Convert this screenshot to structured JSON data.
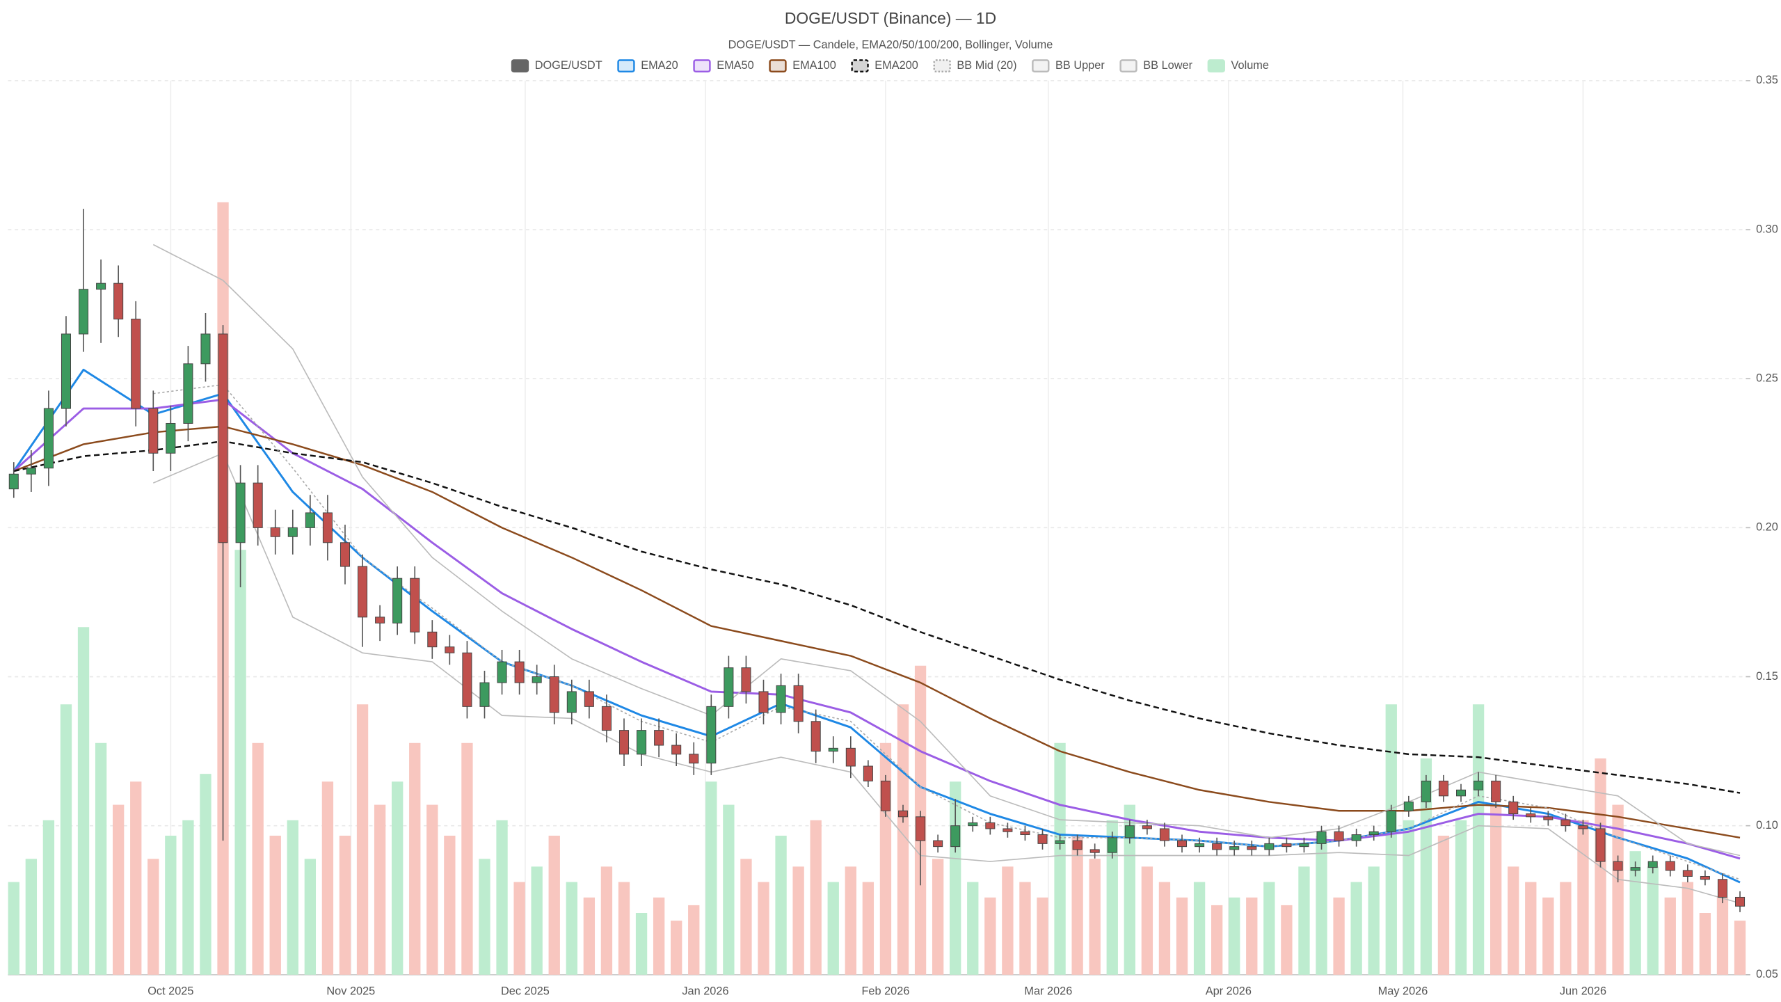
{
  "chart_data": {
    "type": "candlestick",
    "title": "DOGE/USDT (Binance) — 1D",
    "subtitle": "DOGE/USDT — Candele, EMA20/50/100/200, Bollinger, Volume",
    "x": [
      "2025-09-04",
      "2025-09-07",
      "2025-09-10",
      "2025-09-13",
      "2025-09-16",
      "2025-09-19",
      "2025-09-22",
      "2025-09-25",
      "2025-09-28",
      "2025-10-01",
      "2025-10-04",
      "2025-10-07",
      "2025-10-10",
      "2025-10-13",
      "2025-10-16",
      "2025-10-19",
      "2025-10-22",
      "2025-10-25",
      "2025-10-28",
      "2025-10-31",
      "2025-11-03",
      "2025-11-06",
      "2025-11-09",
      "2025-11-12",
      "2025-11-15",
      "2025-11-18",
      "2025-11-21",
      "2025-11-24",
      "2025-11-27",
      "2025-11-30",
      "2025-12-03",
      "2025-12-06",
      "2025-12-09",
      "2025-12-12",
      "2025-12-15",
      "2025-12-18",
      "2025-12-21",
      "2025-12-24",
      "2025-12-27",
      "2025-12-30",
      "2026-01-02",
      "2026-01-05",
      "2026-01-08",
      "2026-01-11",
      "2026-01-14",
      "2026-01-17",
      "2026-01-20",
      "2026-01-23",
      "2026-01-26",
      "2026-01-29",
      "2026-02-01",
      "2026-02-04",
      "2026-02-07",
      "2026-02-10",
      "2026-02-13",
      "2026-02-16",
      "2026-02-19",
      "2026-02-22",
      "2026-02-25",
      "2026-02-28",
      "2026-03-03",
      "2026-03-06",
      "2026-03-09",
      "2026-03-12",
      "2026-03-15",
      "2026-03-18",
      "2026-03-21",
      "2026-03-24",
      "2026-03-27",
      "2026-03-30",
      "2026-04-02",
      "2026-04-05",
      "2026-04-08",
      "2026-04-11",
      "2026-04-14",
      "2026-04-17",
      "2026-04-20",
      "2026-04-23",
      "2026-04-26",
      "2026-04-29",
      "2026-05-02",
      "2026-05-05",
      "2026-05-08",
      "2026-05-11",
      "2026-05-14",
      "2026-05-17",
      "2026-05-20",
      "2026-05-23",
      "2026-05-26",
      "2026-05-29",
      "2026-06-01",
      "2026-06-04",
      "2026-06-07",
      "2026-06-10",
      "2026-06-13",
      "2026-06-16",
      "2026-06-19",
      "2026-06-22",
      "2026-06-25",
      "2026-06-28"
    ],
    "series": [
      {
        "name": "DOGE/USDT",
        "legend_color": "#666666",
        "up_color": "#3d9a5f",
        "down_color": "#c0504d",
        "open": [
          0.213,
          0.218,
          0.22,
          0.24,
          0.265,
          0.28,
          0.282,
          0.27,
          0.24,
          0.225,
          0.235,
          0.255,
          0.265,
          0.195,
          0.215,
          0.2,
          0.197,
          0.2,
          0.205,
          0.195,
          0.187,
          0.17,
          0.168,
          0.183,
          0.165,
          0.16,
          0.158,
          0.14,
          0.148,
          0.155,
          0.148,
          0.15,
          0.138,
          0.145,
          0.14,
          0.132,
          0.124,
          0.132,
          0.127,
          0.124,
          0.121,
          0.14,
          0.153,
          0.145,
          0.138,
          0.147,
          0.135,
          0.125,
          0.126,
          0.12,
          0.115,
          0.105,
          0.103,
          0.095,
          0.093,
          0.1,
          0.101,
          0.099,
          0.098,
          0.097,
          0.094,
          0.095,
          0.092,
          0.091,
          0.096,
          0.1,
          0.099,
          0.095,
          0.093,
          0.094,
          0.092,
          0.093,
          0.092,
          0.094,
          0.093,
          0.094,
          0.098,
          0.095,
          0.097,
          0.098,
          0.105,
          0.108,
          0.115,
          0.11,
          0.112,
          0.115,
          0.108,
          0.104,
          0.103,
          0.102,
          0.1,
          0.099,
          0.088,
          0.085,
          0.086,
          0.088,
          0.085,
          0.083,
          0.082,
          0.076
        ],
        "high": [
          0.222,
          0.226,
          0.246,
          0.271,
          0.307,
          0.29,
          0.288,
          0.276,
          0.246,
          0.241,
          0.261,
          0.272,
          0.268,
          0.221,
          0.221,
          0.206,
          0.206,
          0.211,
          0.211,
          0.201,
          0.191,
          0.174,
          0.187,
          0.187,
          0.169,
          0.164,
          0.162,
          0.152,
          0.159,
          0.159,
          0.154,
          0.154,
          0.149,
          0.149,
          0.144,
          0.136,
          0.136,
          0.136,
          0.131,
          0.128,
          0.144,
          0.157,
          0.157,
          0.149,
          0.151,
          0.151,
          0.139,
          0.13,
          0.13,
          0.122,
          0.117,
          0.107,
          0.105,
          0.097,
          0.109,
          0.103,
          0.103,
          0.101,
          0.1,
          0.099,
          0.097,
          0.097,
          0.094,
          0.098,
          0.102,
          0.102,
          0.101,
          0.097,
          0.096,
          0.096,
          0.095,
          0.095,
          0.096,
          0.096,
          0.096,
          0.1,
          0.1,
          0.099,
          0.1,
          0.107,
          0.11,
          0.117,
          0.117,
          0.114,
          0.118,
          0.117,
          0.11,
          0.106,
          0.105,
          0.104,
          0.102,
          0.101,
          0.09,
          0.088,
          0.09,
          0.09,
          0.087,
          0.085,
          0.084,
          0.078
        ],
        "low": [
          0.21,
          0.212,
          0.214,
          0.234,
          0.259,
          0.262,
          0.264,
          0.234,
          0.219,
          0.219,
          0.229,
          0.249,
          0.095,
          0.18,
          0.194,
          0.191,
          0.191,
          0.194,
          0.189,
          0.181,
          0.16,
          0.162,
          0.164,
          0.161,
          0.156,
          0.154,
          0.136,
          0.136,
          0.144,
          0.144,
          0.144,
          0.134,
          0.134,
          0.136,
          0.128,
          0.12,
          0.12,
          0.123,
          0.12,
          0.117,
          0.117,
          0.136,
          0.141,
          0.134,
          0.134,
          0.131,
          0.121,
          0.121,
          0.116,
          0.113,
          0.103,
          0.101,
          0.08,
          0.091,
          0.091,
          0.098,
          0.097,
          0.096,
          0.095,
          0.092,
          0.092,
          0.09,
          0.089,
          0.089,
          0.094,
          0.097,
          0.093,
          0.091,
          0.091,
          0.09,
          0.09,
          0.09,
          0.09,
          0.091,
          0.091,
          0.092,
          0.093,
          0.093,
          0.095,
          0.096,
          0.103,
          0.106,
          0.108,
          0.108,
          0.11,
          0.106,
          0.102,
          0.101,
          0.1,
          0.098,
          0.097,
          0.086,
          0.081,
          0.083,
          0.084,
          0.083,
          0.081,
          0.08,
          0.074,
          0.071
        ],
        "close": [
          0.218,
          0.22,
          0.24,
          0.265,
          0.28,
          0.282,
          0.27,
          0.24,
          0.225,
          0.235,
          0.255,
          0.265,
          0.195,
          0.215,
          0.2,
          0.197,
          0.2,
          0.205,
          0.195,
          0.187,
          0.17,
          0.168,
          0.183,
          0.165,
          0.16,
          0.158,
          0.14,
          0.148,
          0.155,
          0.148,
          0.15,
          0.138,
          0.145,
          0.14,
          0.132,
          0.124,
          0.132,
          0.127,
          0.124,
          0.121,
          0.14,
          0.153,
          0.145,
          0.138,
          0.147,
          0.135,
          0.125,
          0.126,
          0.12,
          0.115,
          0.105,
          0.103,
          0.095,
          0.093,
          0.1,
          0.101,
          0.099,
          0.098,
          0.097,
          0.094,
          0.095,
          0.092,
          0.091,
          0.096,
          0.1,
          0.099,
          0.095,
          0.093,
          0.094,
          0.092,
          0.093,
          0.092,
          0.094,
          0.093,
          0.094,
          0.098,
          0.095,
          0.097,
          0.098,
          0.105,
          0.108,
          0.115,
          0.11,
          0.112,
          0.115,
          0.108,
          0.104,
          0.103,
          0.102,
          0.1,
          0.099,
          0.088,
          0.085,
          0.086,
          0.088,
          0.085,
          0.083,
          0.082,
          0.076,
          0.073
        ]
      },
      {
        "name": "Volume",
        "color": "#bdeccf",
        "down_color": "#f8c6bf",
        "values": [
          12,
          15,
          20,
          35,
          45,
          30,
          22,
          25,
          15,
          18,
          20,
          26,
          100,
          55,
          30,
          18,
          20,
          15,
          25,
          18,
          35,
          22,
          25,
          30,
          22,
          18,
          30,
          15,
          20,
          12,
          14,
          18,
          12,
          10,
          14,
          12,
          8,
          10,
          7,
          9,
          25,
          22,
          15,
          12,
          18,
          14,
          20,
          12,
          14,
          12,
          30,
          35,
          40,
          15,
          25,
          12,
          10,
          14,
          12,
          10,
          30,
          18,
          15,
          20,
          22,
          14,
          12,
          10,
          12,
          9,
          10,
          10,
          12,
          9,
          14,
          18,
          10,
          12,
          14,
          35,
          20,
          28,
          18,
          20,
          35,
          22,
          14,
          12,
          10,
          12,
          20,
          28,
          22,
          16,
          14,
          10,
          12,
          8,
          10,
          7
        ]
      }
    ],
    "lines": {
      "x": [
        "2025-09-04",
        "2025-09-16",
        "2025-09-28",
        "2025-10-10",
        "2025-10-22",
        "2025-11-03",
        "2025-11-15",
        "2025-11-27",
        "2025-12-09",
        "2025-12-21",
        "2026-01-02",
        "2026-01-14",
        "2026-01-26",
        "2026-02-07",
        "2026-02-19",
        "2026-03-03",
        "2026-03-15",
        "2026-03-27",
        "2026-04-08",
        "2026-04-20",
        "2026-05-02",
        "2026-05-14",
        "2026-05-26",
        "2026-06-07",
        "2026-06-19",
        "2026-06-28"
      ],
      "series": [
        {
          "name": "EMA20",
          "color": "#1e88e5",
          "dash": "solid",
          "width": 1.8,
          "values": [
            0.219,
            0.253,
            0.238,
            0.245,
            0.212,
            0.19,
            0.172,
            0.155,
            0.147,
            0.137,
            0.13,
            0.141,
            0.133,
            0.113,
            0.104,
            0.097,
            0.096,
            0.095,
            0.093,
            0.095,
            0.099,
            0.108,
            0.104,
            0.096,
            0.089,
            0.081
          ]
        },
        {
          "name": "EMA50",
          "color": "#9b5de5",
          "dash": "solid",
          "width": 1.8,
          "values": [
            0.219,
            0.24,
            0.24,
            0.243,
            0.225,
            0.213,
            0.195,
            0.178,
            0.166,
            0.155,
            0.145,
            0.144,
            0.138,
            0.125,
            0.115,
            0.107,
            0.102,
            0.098,
            0.096,
            0.095,
            0.098,
            0.104,
            0.103,
            0.099,
            0.094,
            0.089
          ]
        },
        {
          "name": "EMA100",
          "color": "#8b4a1c",
          "dash": "solid",
          "width": 1.5,
          "values": [
            0.219,
            0.228,
            0.232,
            0.234,
            0.228,
            0.221,
            0.212,
            0.2,
            0.19,
            0.179,
            0.167,
            0.162,
            0.157,
            0.148,
            0.136,
            0.125,
            0.118,
            0.112,
            0.108,
            0.105,
            0.105,
            0.107,
            0.106,
            0.103,
            0.099,
            0.096
          ]
        },
        {
          "name": "EMA200",
          "color": "#111111",
          "dash": "dashed",
          "width": 1.5,
          "values": [
            0.219,
            0.224,
            0.226,
            0.229,
            0.225,
            0.222,
            0.215,
            0.207,
            0.2,
            0.192,
            0.186,
            0.181,
            0.174,
            0.165,
            0.157,
            0.149,
            0.142,
            0.136,
            0.131,
            0.127,
            0.124,
            0.123,
            0.12,
            0.117,
            0.114,
            0.111
          ]
        },
        {
          "name": "BB Mid (20)",
          "color": "#aaaaaa",
          "dash": "dotted",
          "width": 1,
          "values": [
            null,
            null,
            0.245,
            0.248,
            0.22,
            0.19,
            0.173,
            0.155,
            0.147,
            0.135,
            0.128,
            0.14,
            0.135,
            0.113,
            0.101,
            0.096,
            0.096,
            0.095,
            0.093,
            0.095,
            0.099,
            0.11,
            0.106,
            0.096,
            0.088,
            0.082
          ]
        },
        {
          "name": "BB Upper",
          "color": "#bbbbbb",
          "dash": "solid",
          "width": 1,
          "values": [
            null,
            null,
            0.295,
            0.283,
            0.26,
            0.217,
            0.19,
            0.172,
            0.156,
            0.146,
            0.137,
            0.156,
            0.152,
            0.135,
            0.11,
            0.102,
            0.101,
            0.1,
            0.096,
            0.099,
            0.108,
            0.118,
            0.114,
            0.11,
            0.094,
            0.09
          ]
        },
        {
          "name": "BB Lower",
          "color": "#bbbbbb",
          "dash": "solid",
          "width": 1,
          "values": [
            null,
            null,
            0.215,
            0.225,
            0.17,
            0.158,
            0.155,
            0.137,
            0.136,
            0.124,
            0.118,
            0.123,
            0.118,
            0.09,
            0.088,
            0.09,
            0.09,
            0.09,
            0.09,
            0.091,
            0.09,
            0.1,
            0.099,
            0.082,
            0.079,
            0.074
          ]
        }
      ]
    },
    "xlim": [
      "2025-09-03",
      "2026-06-29"
    ],
    "xticks": [
      {
        "value": "2025-10-01",
        "label": "Oct 2025"
      },
      {
        "value": "2025-11-01",
        "label": "Nov 2025"
      },
      {
        "value": "2025-12-01",
        "label": "Dec 2025"
      },
      {
        "value": "2026-01-01",
        "label": "Jan 2026"
      },
      {
        "value": "2026-02-01",
        "label": "Feb 2026"
      },
      {
        "value": "2026-03-01",
        "label": "Mar 2026"
      },
      {
        "value": "2026-04-01",
        "label": "Apr 2026"
      },
      {
        "value": "2026-05-01",
        "label": "May 2026"
      },
      {
        "value": "2026-06-01",
        "label": "Jun 2026"
      }
    ],
    "ylim": [
      0.05,
      0.35
    ],
    "yticks": [
      0.05,
      {
        "value": 0.1,
        "label": "0.10"
      },
      0.15,
      {
        "value": 0.2,
        "label": "0.20"
      },
      0.25,
      {
        "value": 0.3,
        "label": "0.30"
      },
      0.35
    ],
    "grid": true,
    "legend": "top"
  }
}
